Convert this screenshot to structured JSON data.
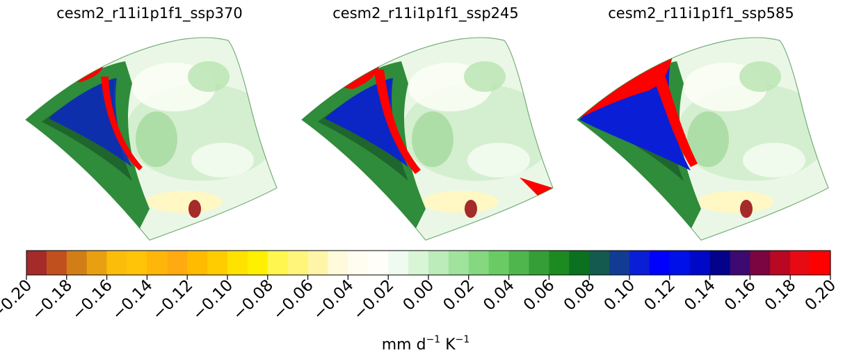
{
  "chart_data": {
    "type": "heatmap",
    "panels": [
      {
        "title": "cesm2_r11i1p1f1_ssp370",
        "pattern": "a"
      },
      {
        "title": "cesm2_r11i1p1f1_ssp245",
        "pattern": "b"
      },
      {
        "title": "cesm2_r11i1p1f1_ssp585",
        "pattern": "c"
      }
    ],
    "colorbar": {
      "vmin": -0.2,
      "vmax": 0.2,
      "ticks": [
        "−0.20",
        "−0.18",
        "−0.16",
        "−0.14",
        "−0.12",
        "−0.10",
        "−0.08",
        "−0.06",
        "−0.04",
        "−0.02",
        "0.00",
        "0.02",
        "0.04",
        "0.06",
        "0.08",
        "0.10",
        "0.12",
        "0.14",
        "0.16",
        "0.18",
        "0.20"
      ],
      "colors": [
        "#a52a2a",
        "#c0501e",
        "#d27e16",
        "#e8a010",
        "#fcbd0a",
        "#ffc408",
        "#ffb60a",
        "#ffaa10",
        "#ffbb00",
        "#ffcc00",
        "#ffe200",
        "#fff000",
        "#fff650",
        "#fff57a",
        "#fff5a8",
        "#fffadc",
        "#fffdf0",
        "#fffef8",
        "#f0fbef",
        "#d8f5d6",
        "#bcecb9",
        "#a0e39c",
        "#85d880",
        "#6acb65",
        "#4fb64e",
        "#359e36",
        "#1c8a20",
        "#0b7020",
        "#145a4f",
        "#123c94",
        "#0a1ed6",
        "#0000ff",
        "#0010e8",
        "#0008c8",
        "#02028a",
        "#3c0a70",
        "#7a0540",
        "#b80822",
        "#e80a12",
        "#ff0000"
      ],
      "label_main": "mm d",
      "label_exp1": "−1",
      "label_mid": " K",
      "label_exp2": "−1"
    }
  }
}
